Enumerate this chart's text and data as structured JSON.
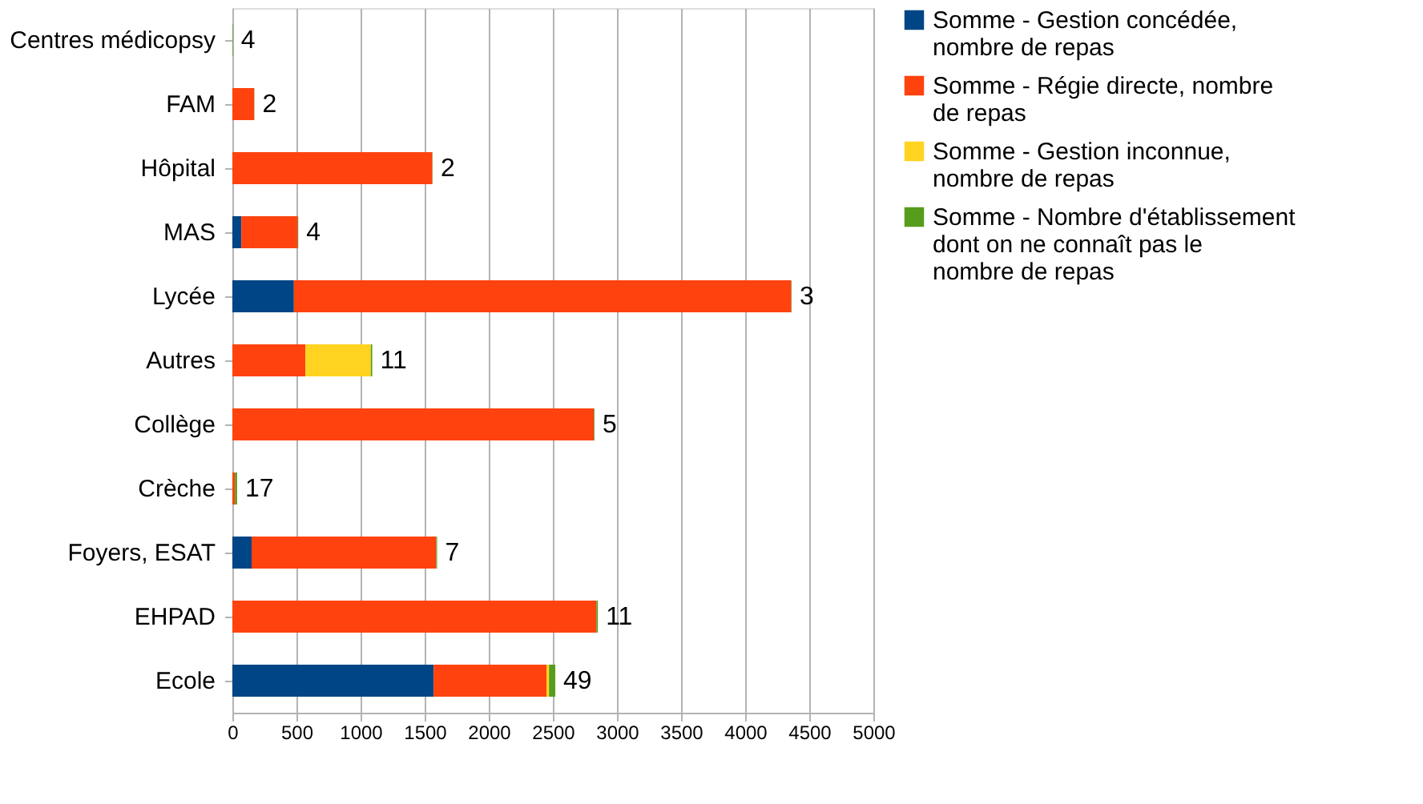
{
  "chart_data": {
    "type": "bar",
    "orientation": "horizontal",
    "stacked": true,
    "categories": [
      "Centres médicopsy",
      "FAM",
      "Hôpital",
      "MAS",
      "Lycée",
      "Autres",
      "Collège",
      "Crèche",
      "Foyers, ESAT",
      "EHPAD",
      "Ecole"
    ],
    "series": [
      {
        "name": "Somme - Gestion concédée, nombre de repas",
        "color": "#004586",
        "values": [
          0,
          0,
          0,
          70,
          480,
          0,
          0,
          0,
          150,
          0,
          1570
        ]
      },
      {
        "name": "Somme - Régie directe, nombre de repas",
        "color": "#ff420e",
        "values": [
          0,
          170,
          1560,
          440,
          3880,
          570,
          2820,
          20,
          1440,
          2840,
          880
        ]
      },
      {
        "name": "Somme - Gestion inconnue, nombre de repas",
        "color": "#ffd320",
        "values": [
          0,
          0,
          0,
          0,
          0,
          510,
          0,
          0,
          0,
          0,
          20
        ]
      },
      {
        "name": "Somme - Nombre d'établissement dont on ne connaît pas le nombre de repas",
        "color": "#579d1c",
        "values": [
          4,
          2,
          2,
          4,
          3,
          11,
          5,
          17,
          7,
          11,
          49
        ],
        "value_labels": [
          "4",
          "2",
          "2",
          "4",
          "3",
          "11",
          "5",
          "17",
          "7",
          "11",
          "49"
        ]
      }
    ],
    "xlim": [
      0,
      5000
    ],
    "xticks": [
      0,
      500,
      1000,
      1500,
      2000,
      2500,
      3000,
      3500,
      4000,
      4500,
      5000
    ],
    "grid": "x",
    "legend": "right"
  }
}
